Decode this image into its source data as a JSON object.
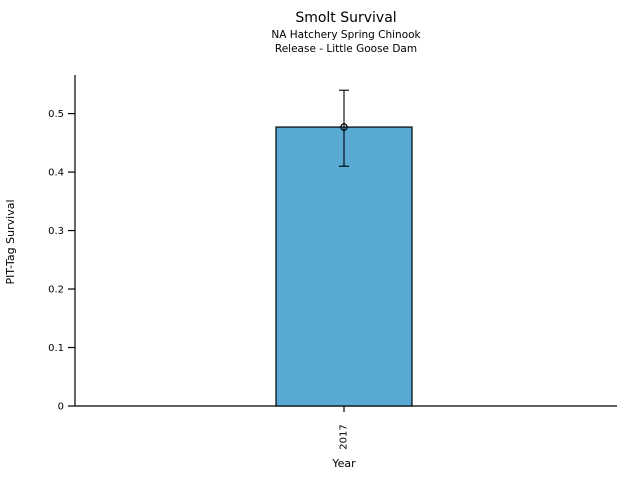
{
  "chart_data": {
    "type": "bar",
    "title": "Smolt Survival",
    "subtitle1": "NA Hatchery Spring Chinook",
    "subtitle2": "Release - Little Goose Dam",
    "xlabel": "Year",
    "ylabel": "PIT-Tag Survival",
    "categories": [
      "2017"
    ],
    "values": [
      0.477
    ],
    "error_low": [
      0.41
    ],
    "error_high": [
      0.54
    ],
    "yticks": [
      0,
      0.1,
      0.2,
      0.3,
      0.4,
      0.5
    ],
    "ytick_labels": [
      "0",
      "0.1",
      "0.2",
      "0.3",
      "0.4",
      "0.5"
    ],
    "ylim": [
      0,
      0.566
    ],
    "grid": false,
    "legend": "none",
    "bar_color": "#58A9D4",
    "bar_edge_color": "#000000",
    "axis_color": "#000000",
    "marker": "open-circle"
  }
}
